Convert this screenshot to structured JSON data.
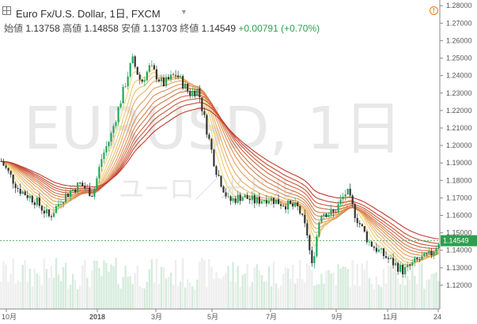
{
  "header": {
    "symbol_title": "Euro Fx/U.S. Dollar, 1日, FXCM",
    "ohlc": [
      {
        "label": "始値",
        "value": "1.13758"
      },
      {
        "label": "高値",
        "value": "1.14858"
      },
      {
        "label": "安値",
        "value": "1.13703"
      },
      {
        "label": "終値",
        "value": "1.14549"
      }
    ],
    "change": "+0.00791 (+0.70%)"
  },
  "watermark": {
    "main": "EURUSD, 1日",
    "sub": "ユーロ／米ドル"
  },
  "icons": [
    "grid-icon",
    "dropdown-caret-icon",
    "alert-icon"
  ],
  "colors": {
    "up": "#26a65b",
    "down": "#333333",
    "ribbon_fast": "#f5d77a",
    "ribbon_slow": "#c0392b",
    "last_price_tag": "#2f9e4f"
  },
  "chart_data": {
    "type": "line",
    "instrument": "EURUSD",
    "timeframe": "1日",
    "ylim": [
      1.115,
      1.281
    ],
    "y_ticks": [
      "1.28000",
      "1.27000",
      "1.26000",
      "1.25000",
      "1.24000",
      "1.23000",
      "1.22000",
      "1.21000",
      "1.20000",
      "1.19000",
      "1.18000",
      "1.17000",
      "1.16000",
      "1.15000",
      "1.14000",
      "1.13000",
      "1.12000"
    ],
    "x_ticks": [
      "10月",
      "2018",
      "3月",
      "5月",
      "7月",
      "9月",
      "11月",
      "24"
    ],
    "last_price": "1.14549",
    "price_path": [
      [
        0.0,
        1.191
      ],
      [
        0.04,
        1.175
      ],
      [
        0.08,
        1.168
      ],
      [
        0.11,
        1.159
      ],
      [
        0.14,
        1.17
      ],
      [
        0.18,
        1.178
      ],
      [
        0.21,
        1.172
      ],
      [
        0.23,
        1.193
      ],
      [
        0.25,
        1.205
      ],
      [
        0.27,
        1.223
      ],
      [
        0.29,
        1.241
      ],
      [
        0.3,
        1.249
      ],
      [
        0.32,
        1.236
      ],
      [
        0.34,
        1.245
      ],
      [
        0.37,
        1.235
      ],
      [
        0.4,
        1.241
      ],
      [
        0.43,
        1.23
      ],
      [
        0.45,
        1.232
      ],
      [
        0.47,
        1.209
      ],
      [
        0.49,
        1.187
      ],
      [
        0.52,
        1.168
      ],
      [
        0.55,
        1.171
      ],
      [
        0.58,
        1.168
      ],
      [
        0.61,
        1.17
      ],
      [
        0.64,
        1.167
      ],
      [
        0.68,
        1.164
      ],
      [
        0.7,
        1.149
      ],
      [
        0.71,
        1.13
      ],
      [
        0.73,
        1.162
      ],
      [
        0.76,
        1.161
      ],
      [
        0.79,
        1.174
      ],
      [
        0.81,
        1.16
      ],
      [
        0.84,
        1.145
      ],
      [
        0.87,
        1.138
      ],
      [
        0.9,
        1.132
      ],
      [
        0.92,
        1.128
      ],
      [
        0.95,
        1.134
      ],
      [
        0.98,
        1.137
      ],
      [
        1.0,
        1.145
      ]
    ]
  }
}
